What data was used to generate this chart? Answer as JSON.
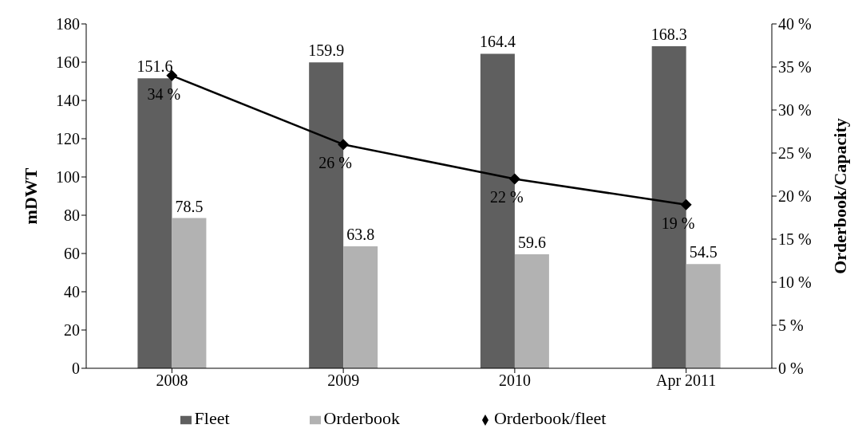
{
  "chart_data": {
    "type": "bar",
    "ylabel": "mDWT",
    "y2label": "Orderbook/Capacity",
    "categories": [
      "2008",
      "2009",
      "2010",
      "Apr 2011"
    ],
    "series": [
      {
        "name": "Fleet",
        "color": "#5f5f5f",
        "values": [
          151.6,
          159.9,
          164.4,
          168.3
        ]
      },
      {
        "name": "Orderbook",
        "color": "#b2b2b2",
        "values": [
          78.5,
          63.8,
          59.6,
          54.5
        ]
      },
      {
        "name": "Orderbook/fleet",
        "type": "line",
        "axis": "y2",
        "color": "#000000",
        "values": [
          34,
          26,
          22,
          19
        ],
        "value_labels": [
          "34 %",
          "26 %",
          "22 %",
          "19 %"
        ],
        "marker": "diamond"
      }
    ],
    "ylim": [
      0,
      180
    ],
    "yticks": [
      0,
      20,
      40,
      60,
      80,
      100,
      120,
      140,
      160,
      180
    ],
    "y2lim": [
      0,
      40
    ],
    "y2ticks": [
      {
        "value": 0,
        "label": "0 %"
      },
      {
        "value": 5,
        "label": "5 %"
      },
      {
        "value": 10,
        "label": "10 %"
      },
      {
        "value": 15,
        "label": "15 %"
      },
      {
        "value": 20,
        "label": "20 %"
      },
      {
        "value": 25,
        "label": "25 %"
      },
      {
        "value": 30,
        "label": "30 %"
      },
      {
        "value": 35,
        "label": "35 %"
      },
      {
        "value": 40,
        "label": "40 %"
      }
    ],
    "data_labels": true,
    "grid": false,
    "legend": "bottom"
  }
}
